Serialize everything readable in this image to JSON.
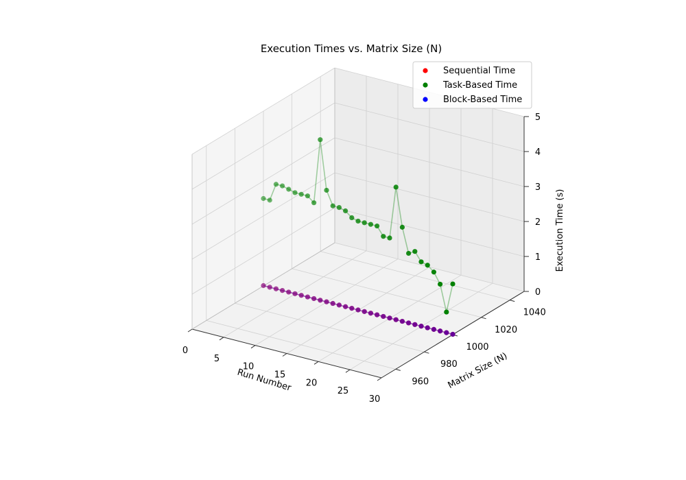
{
  "chart_data": {
    "type": "scatter",
    "projection": "3d",
    "title": "Execution Times vs. Matrix Size (N)",
    "xlabel": "Run Number",
    "ylabel": "Matrix Size (N)",
    "zlabel": "Execution Time (s)",
    "xlim": [
      0,
      30
    ],
    "ylim": [
      950,
      1050
    ],
    "zlim": [
      0,
      5
    ],
    "xticks": [
      0,
      5,
      10,
      15,
      20,
      25,
      30
    ],
    "yticks": [
      960,
      980,
      1000,
      1020,
      1040
    ],
    "zticks": [
      0,
      1,
      2,
      3,
      4,
      5
    ],
    "grid": true,
    "legend_position": "top-right",
    "matrix_size": 1000,
    "series": [
      {
        "name": "Sequential Time",
        "color": "#ff0000",
        "runs": [
          0,
          1,
          2,
          3,
          4,
          5,
          6,
          7,
          8,
          9,
          10,
          11,
          12,
          13,
          14,
          15,
          16,
          17,
          18,
          19,
          20,
          21,
          22,
          23,
          24,
          25,
          26,
          27,
          28,
          29,
          30
        ],
        "values": [
          0.01,
          0.01,
          0.01,
          0.01,
          0.01,
          0.01,
          0.01,
          0.01,
          0.01,
          0.01,
          0.01,
          0.01,
          0.01,
          0.01,
          0.01,
          0.01,
          0.01,
          0.01,
          0.01,
          0.01,
          0.01,
          0.01,
          0.01,
          0.01,
          0.01,
          0.01,
          0.01,
          0.01,
          0.01,
          0.01,
          0.01
        ]
      },
      {
        "name": "Task-Based Time",
        "color": "#008000",
        "runs": [
          0,
          1,
          2,
          3,
          4,
          5,
          6,
          7,
          8,
          9,
          10,
          11,
          12,
          13,
          14,
          15,
          16,
          17,
          18,
          19,
          20,
          21,
          22,
          23,
          24,
          25,
          26,
          27,
          28,
          29,
          30
        ],
        "values": [
          2.5,
          2.5,
          3.0,
          3.0,
          2.95,
          2.9,
          2.9,
          2.9,
          2.75,
          4.6,
          3.2,
          2.8,
          2.8,
          2.75,
          2.6,
          2.55,
          2.55,
          2.55,
          2.55,
          2.3,
          2.3,
          3.8,
          2.7,
          2.0,
          2.1,
          1.85,
          1.8,
          1.65,
          1.35,
          0.6,
          1.45
        ]
      },
      {
        "name": "Block-Based Time",
        "color": "#0000ff",
        "runs": [
          0,
          1,
          2,
          3,
          4,
          5,
          6,
          7,
          8,
          9,
          10,
          11,
          12,
          13,
          14,
          15,
          16,
          17,
          18,
          19,
          20,
          21,
          22,
          23,
          24,
          25,
          26,
          27,
          28,
          29,
          30
        ],
        "values": [
          0.01,
          0.01,
          0.01,
          0.01,
          0.01,
          0.01,
          0.01,
          0.01,
          0.01,
          0.01,
          0.01,
          0.01,
          0.01,
          0.01,
          0.01,
          0.01,
          0.01,
          0.01,
          0.01,
          0.01,
          0.01,
          0.01,
          0.01,
          0.01,
          0.01,
          0.01,
          0.01,
          0.01,
          0.01,
          0.01,
          0.01
        ]
      }
    ]
  }
}
